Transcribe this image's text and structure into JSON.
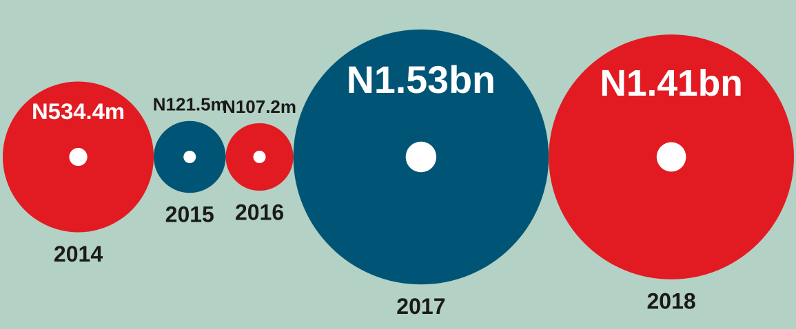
{
  "chart_data": {
    "type": "bubble",
    "categories": [
      "2014",
      "2015",
      "2016",
      "2017",
      "2018"
    ],
    "values": [
      534400000,
      121500000,
      107200000,
      1530000000,
      1410000000
    ],
    "value_labels": [
      "N534.4m",
      "N121.5m",
      "N107.2m",
      "N1.53bn",
      "N1.41bn"
    ],
    "colors": [
      "#e21b23",
      "#005577",
      "#e21b23",
      "#005577",
      "#e21b23"
    ]
  }
}
